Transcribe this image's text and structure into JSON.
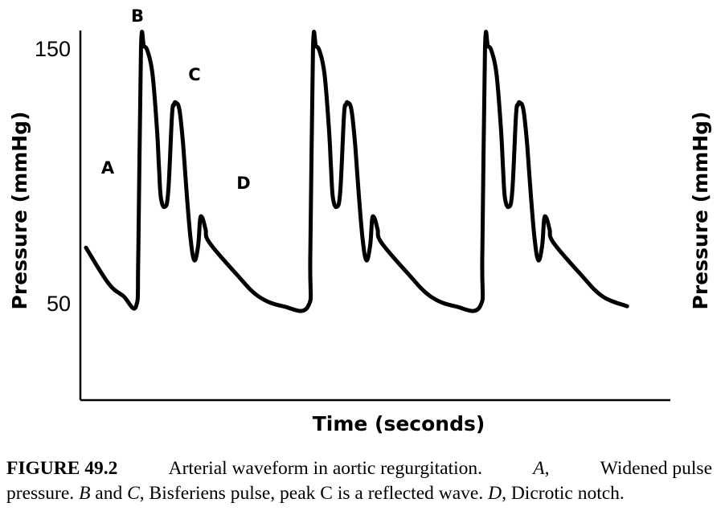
{
  "chart_data": {
    "type": "line",
    "title": "",
    "xlabel": "Time (seconds)",
    "ylabel": "Pressure (mmHg)",
    "ylabel_right": "Pressure (mmHg)",
    "yticks": [
      150,
      50
    ],
    "ylim": [
      15,
      150
    ],
    "x_ticks_shown": false,
    "grid": false,
    "series": [
      {
        "values_description_unit": "mmHg",
        "x": [
          0.0,
          0.06,
          0.1,
          0.134,
          0.14,
          0.147,
          0.155,
          0.165,
          0.178,
          0.19,
          0.195,
          0.2,
          0.21,
          0.22,
          0.23,
          0.235,
          0.24,
          0.25,
          0.26,
          0.27,
          0.28,
          0.29,
          0.3,
          0.305,
          0.31,
          0.315,
          0.32,
          0.33,
          0.4,
          0.46,
          0.527
        ],
        "values": [
          72,
          58,
          53,
          49,
          70,
          150,
          151,
          149,
          140,
          118,
          104,
          92,
          88,
          94,
          124,
          128,
          129,
          126,
          112,
          92,
          75,
          67,
          73,
          83,
          84,
          82,
          79,
          74,
          62,
          53,
          49
        ],
        "cycles": 3
      }
    ]
  },
  "annotations": {
    "A": "A",
    "B": "B",
    "C": "C",
    "D": "D"
  },
  "caption": {
    "figure_number": "FIGURE 49.2",
    "line1_text": "Arterial waveform in aortic regurgitation.",
    "A": "A",
    "line1_tail": "Widened pulse",
    "line2_lead": "pressure.",
    "B": "B",
    "and": "and",
    "C": "C",
    "line2_mid": "Bisferiens pulse, peak C is a reflected wave.",
    "D": "D",
    "line2_tail": "Dicrotic notch."
  }
}
